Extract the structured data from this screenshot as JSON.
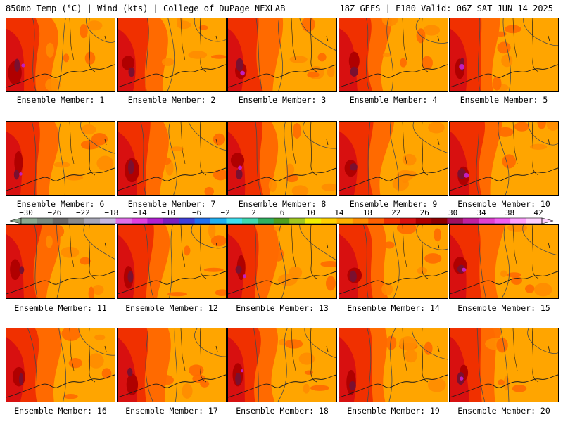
{
  "header": {
    "left": "850mb Temp (°C) | Wind (kts) | College of DuPage NEXLAB",
    "right": "18Z GEFS | F180 Valid: 06Z SAT JUN 14 2025"
  },
  "panels": [
    {
      "label": "Ensemble Member: 1"
    },
    {
      "label": "Ensemble Member: 2"
    },
    {
      "label": "Ensemble Member: 3"
    },
    {
      "label": "Ensemble Member: 4"
    },
    {
      "label": "Ensemble Member: 5"
    },
    {
      "label": "Ensemble Member: 6"
    },
    {
      "label": "Ensemble Member: 7"
    },
    {
      "label": "Ensemble Member: 8"
    },
    {
      "label": "Ensemble Member: 9"
    },
    {
      "label": "Ensemble Member: 10"
    },
    {
      "label": "Ensemble Member: 11"
    },
    {
      "label": "Ensemble Member: 12"
    },
    {
      "label": "Ensemble Member: 13"
    },
    {
      "label": "Ensemble Member: 14"
    },
    {
      "label": "Ensemble Member: 15"
    },
    {
      "label": "Ensemble Member: 16"
    },
    {
      "label": "Ensemble Member: 17"
    },
    {
      "label": "Ensemble Member: 18"
    },
    {
      "label": "Ensemble Member: 19"
    },
    {
      "label": "Ensemble Member: 20"
    }
  ],
  "colorbar": {
    "tick_labels": [
      "−30",
      "−26",
      "−22",
      "−18",
      "−14",
      "−10",
      "−6",
      "−2",
      "2",
      "6",
      "10",
      "14",
      "18",
      "22",
      "26",
      "30",
      "34",
      "38",
      "42"
    ],
    "colors": [
      "#8aa890",
      "#7a8a80",
      "#6a6a6a",
      "#8a8a8a",
      "#a8a8b8",
      "#c8b8e0",
      "#e070e8",
      "#e040e0",
      "#b020d0",
      "#7a20c0",
      "#4040d8",
      "#2070f0",
      "#20b0f0",
      "#40e0f0",
      "#40d8b0",
      "#30b060",
      "#50a020",
      "#a0c820",
      "#f0f000",
      "#ffd000",
      "#ffb000",
      "#ff8c00",
      "#ff6000",
      "#f03000",
      "#d81010",
      "#b00000",
      "#900000",
      "#a01060",
      "#c020a0",
      "#e040d0",
      "#f060f0",
      "#ffa0ff",
      "#ffd0ff"
    ]
  },
  "map_colors": {
    "base": "#ffa500",
    "warm1": "#ff8c00",
    "warm2": "#ff6a00",
    "hot1": "#f03000",
    "hot2": "#d81010",
    "hot3": "#b00000",
    "extreme": "#7a1030",
    "purple": "#c020c0",
    "contour": "#4a4a4a",
    "coast": "#1a1a1a"
  }
}
